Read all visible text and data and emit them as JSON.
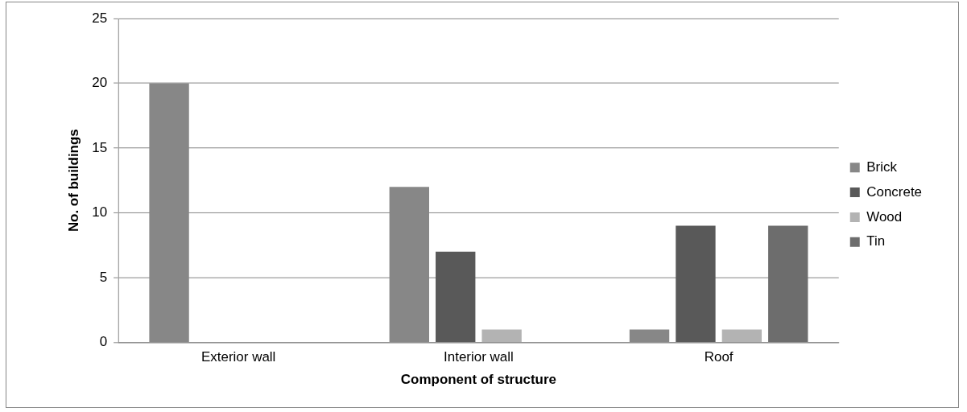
{
  "chart_data": {
    "type": "bar",
    "xlabel": "Component of structure",
    "ylabel": "No. of buildings",
    "categories": [
      "Exterior wall",
      "Interior wall",
      "Roof"
    ],
    "series": [
      {
        "name": "Brick",
        "color": "#878787",
        "values": [
          20,
          12,
          1
        ]
      },
      {
        "name": "Concrete",
        "color": "#595959",
        "values": [
          0,
          7,
          9
        ]
      },
      {
        "name": "Wood",
        "color": "#b3b3b3",
        "values": [
          0,
          1,
          1
        ]
      },
      {
        "name": "Tin",
        "color": "#6d6d6d",
        "values": [
          0,
          0,
          9
        ]
      }
    ],
    "ylim": [
      0,
      25
    ],
    "yticks": [
      0,
      5,
      10,
      15,
      20,
      25
    ],
    "grid": "y",
    "legend": "right"
  }
}
